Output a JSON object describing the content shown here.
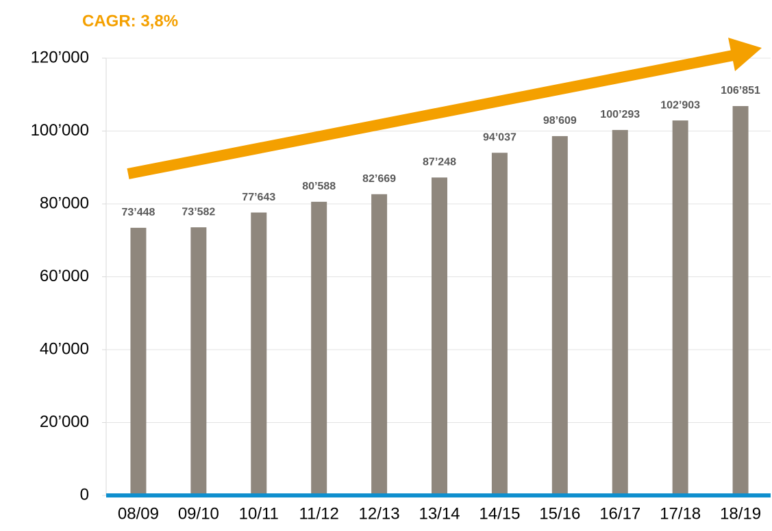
{
  "chart_data": {
    "type": "bar",
    "annotation": "CAGR: 3,8%",
    "categories": [
      "08/09",
      "09/10",
      "10/11",
      "11/12",
      "12/13",
      "13/14",
      "14/15",
      "15/16",
      "16/17",
      "17/18",
      "18/19"
    ],
    "values": [
      73448,
      73582,
      77643,
      80588,
      82669,
      87248,
      94037,
      98609,
      100293,
      102903,
      106851
    ],
    "value_labels": [
      "73’448",
      "73’582",
      "77’643",
      "80’588",
      "82’669",
      "87’248",
      "94’037",
      "98’609",
      "100’293",
      "102’903",
      "106’851"
    ],
    "color": "#8f877d",
    "axis_color": "#0f8fce",
    "ylim": [
      0,
      120000
    ],
    "yticks": [
      0,
      {
        "value": 20000,
        "label": "20’000"
      },
      {
        "value": 40000,
        "label": "40’000"
      },
      {
        "value": 60000,
        "label": "60’000"
      },
      {
        "value": 80000,
        "label": "80’000"
      },
      {
        "value": 100000,
        "label": "100’000"
      },
      {
        "value": 120000,
        "label": "120’000"
      }
    ],
    "grid": true
  }
}
